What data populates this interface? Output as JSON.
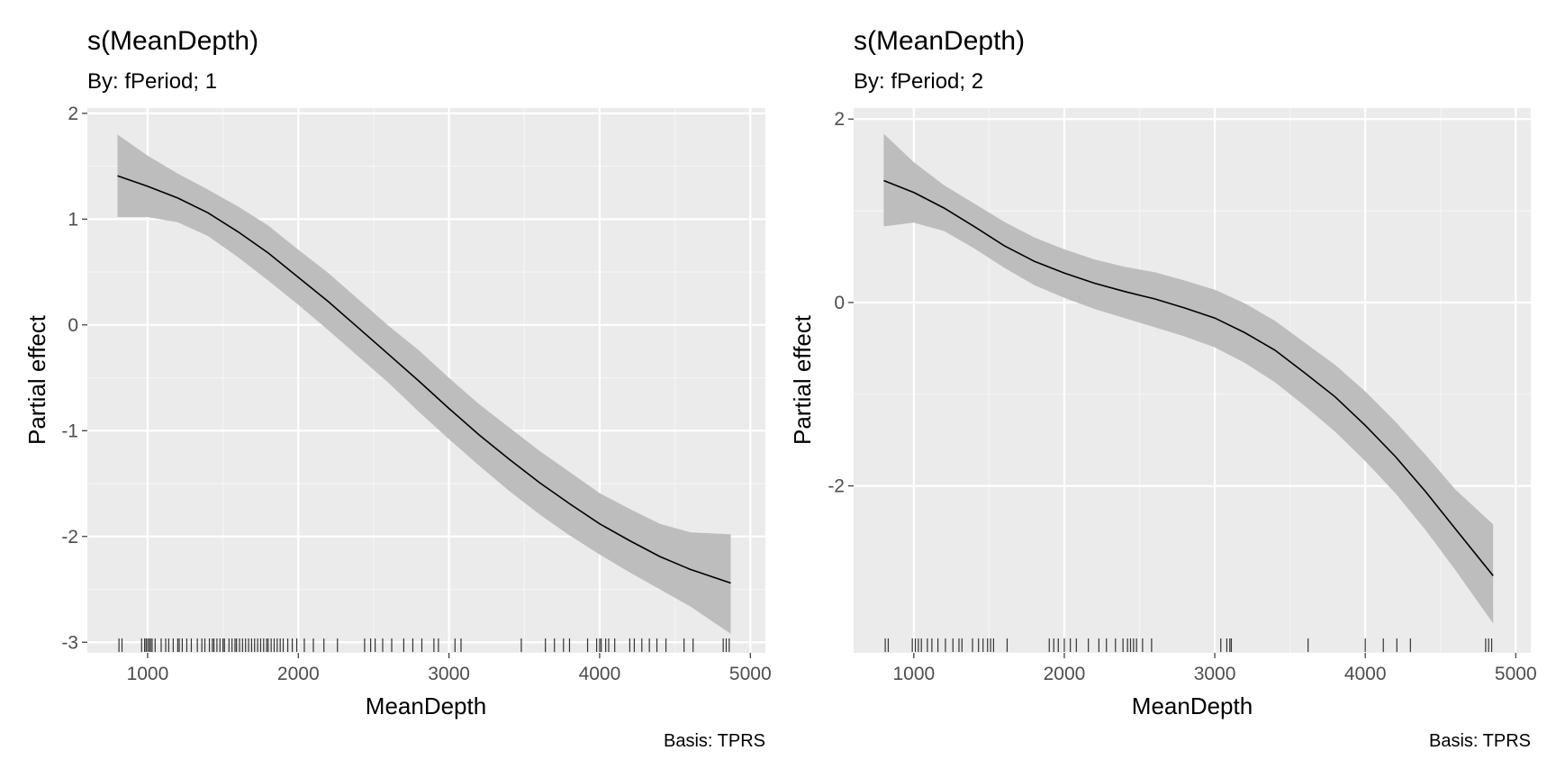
{
  "chart_data": [
    {
      "type": "line",
      "title": "s(MeanDepth)",
      "subtitle": "By: fPeriod; 1",
      "caption": "Basis: TPRS",
      "xlabel": "MeanDepth",
      "ylabel": "Partial effect",
      "xlim": [
        600,
        5100
      ],
      "ylim": [
        -3.1,
        2.05
      ],
      "x_ticks": [
        1000,
        2000,
        3000,
        4000,
        5000
      ],
      "x_tick_labels": [
        "1000",
        "2000",
        "3000",
        "4000",
        "5000"
      ],
      "y_ticks": [
        -3,
        -2,
        -1,
        0,
        1,
        2
      ],
      "y_tick_labels": [
        "-3",
        "-2",
        "-1",
        "0",
        "1",
        "2"
      ],
      "grid": true,
      "series": [
        {
          "x": [
            800,
            1000,
            1200,
            1400,
            1600,
            1800,
            2000,
            2200,
            2400,
            2600,
            2800,
            3000,
            3200,
            3400,
            3600,
            3800,
            4000,
            4200,
            4400,
            4600,
            4870
          ],
          "y": [
            1.41,
            1.31,
            1.2,
            1.06,
            0.88,
            0.68,
            0.45,
            0.22,
            -0.03,
            -0.28,
            -0.53,
            -0.79,
            -1.04,
            -1.27,
            -1.49,
            -1.69,
            -1.88,
            -2.04,
            -2.19,
            -2.31,
            -2.44
          ],
          "lower": [
            1.02,
            1.02,
            0.97,
            0.84,
            0.64,
            0.42,
            0.19,
            -0.05,
            -0.3,
            -0.55,
            -0.82,
            -1.08,
            -1.33,
            -1.57,
            -1.79,
            -1.99,
            -2.17,
            -2.34,
            -2.5,
            -2.66,
            -2.92
          ],
          "upper": [
            1.8,
            1.6,
            1.43,
            1.28,
            1.12,
            0.94,
            0.71,
            0.49,
            0.24,
            -0.01,
            -0.24,
            -0.5,
            -0.75,
            -0.97,
            -1.19,
            -1.39,
            -1.59,
            -1.74,
            -1.88,
            -1.96,
            -1.98
          ]
        }
      ],
      "rug": [
        810,
        830,
        960,
        980,
        990,
        1000,
        1010,
        1020,
        1030,
        1050,
        1090,
        1120,
        1140,
        1170,
        1200,
        1210,
        1230,
        1260,
        1290,
        1330,
        1360,
        1380,
        1410,
        1430,
        1440,
        1460,
        1480,
        1500,
        1510,
        1540,
        1560,
        1580,
        1590,
        1610,
        1630,
        1650,
        1670,
        1690,
        1710,
        1730,
        1750,
        1770,
        1790,
        1800,
        1820,
        1840,
        1860,
        1880,
        1900,
        1930,
        1960,
        1990,
        2040,
        2100,
        2170,
        2260,
        2440,
        2480,
        2510,
        2560,
        2620,
        2700,
        2760,
        2820,
        2900,
        2930,
        3040,
        3080,
        3480,
        3640,
        3700,
        3760,
        3800,
        3920,
        3980,
        4000,
        4010,
        4040,
        4060,
        4100,
        4200,
        4230,
        4280,
        4330,
        4380,
        4440,
        4560,
        4620,
        4820,
        4840,
        4860
      ]
    },
    {
      "type": "line",
      "title": "s(MeanDepth)",
      "subtitle": "By: fPeriod; 2",
      "caption": "Basis: TPRS",
      "xlabel": "MeanDepth",
      "ylabel": "Partial effect",
      "xlim": [
        600,
        5100
      ],
      "ylim": [
        -3.82,
        2.12
      ],
      "x_ticks": [
        1000,
        2000,
        3000,
        4000,
        5000
      ],
      "x_tick_labels": [
        "1000",
        "2000",
        "3000",
        "4000",
        "5000"
      ],
      "y_ticks": [
        -2,
        0,
        2
      ],
      "y_tick_labels": [
        "-2",
        "0",
        "2"
      ],
      "grid": true,
      "series": [
        {
          "x": [
            800,
            1000,
            1200,
            1400,
            1600,
            1800,
            2000,
            2200,
            2400,
            2600,
            2800,
            3000,
            3200,
            3400,
            3600,
            3800,
            4000,
            4200,
            4400,
            4600,
            4850
          ],
          "y": [
            1.33,
            1.2,
            1.03,
            0.83,
            0.62,
            0.45,
            0.32,
            0.21,
            0.12,
            0.04,
            -0.06,
            -0.17,
            -0.33,
            -0.52,
            -0.77,
            -1.03,
            -1.34,
            -1.68,
            -2.06,
            -2.47,
            -2.98
          ],
          "lower": [
            0.83,
            0.87,
            0.78,
            0.59,
            0.38,
            0.19,
            0.05,
            -0.07,
            -0.17,
            -0.27,
            -0.37,
            -0.49,
            -0.66,
            -0.87,
            -1.13,
            -1.41,
            -1.73,
            -2.08,
            -2.48,
            -2.92,
            -3.5
          ],
          "upper": [
            1.84,
            1.53,
            1.28,
            1.08,
            0.88,
            0.71,
            0.58,
            0.47,
            0.39,
            0.33,
            0.24,
            0.14,
            -0.01,
            -0.2,
            -0.44,
            -0.68,
            -0.97,
            -1.3,
            -1.66,
            -2.04,
            -2.42
          ]
        }
      ],
      "rug": [
        810,
        830,
        990,
        1010,
        1030,
        1050,
        1090,
        1120,
        1160,
        1210,
        1260,
        1300,
        1320,
        1390,
        1430,
        1460,
        1490,
        1510,
        1530,
        1620,
        1900,
        1930,
        1960,
        2000,
        2040,
        2080,
        2160,
        2230,
        2280,
        2340,
        2390,
        2420,
        2440,
        2460,
        2480,
        2520,
        2580,
        3040,
        3080,
        3100,
        3110,
        3620,
        4000,
        4120,
        4210,
        4300,
        4800,
        4820,
        4840
      ]
    }
  ]
}
